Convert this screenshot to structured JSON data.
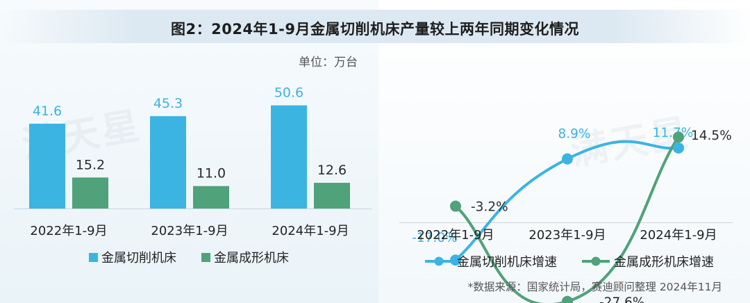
{
  "title": "图2：2024年1-9月金属切削机床产量较上两年同期变化情况",
  "unit_label": "单位：万台",
  "source": "*数据来源：国家统计局，赛迪顾问整理 2024年11月",
  "watermark": "满天星",
  "colors": {
    "cutting": "#3cb4e2",
    "forming": "#4fa279"
  },
  "chart_data": [
    {
      "type": "bar",
      "categories": [
        "2022年1-9月",
        "2023年1-9月",
        "2024年1-9月"
      ],
      "series": [
        {
          "name": "金属切削机床",
          "values": [
            41.6,
            45.3,
            50.6
          ],
          "labels": [
            "41.6",
            "45.3",
            "50.6"
          ]
        },
        {
          "name": "金属成形机床",
          "values": [
            15.2,
            11.0,
            12.6
          ],
          "labels": [
            "15.2",
            "11.0",
            "12.6"
          ]
        }
      ],
      "ylim": [
        0,
        60
      ],
      "legend": "bottom",
      "grid": false
    },
    {
      "type": "line",
      "categories": [
        "2022年1-9月",
        "2023年1-9月",
        "2024年1-9月"
      ],
      "series": [
        {
          "name": "金属切削机床增速",
          "values": [
            -17.0,
            8.9,
            11.7
          ],
          "labels": [
            "-17.0%",
            "8.9%",
            "11.7%"
          ]
        },
        {
          "name": "金属成形机床增速",
          "values": [
            -3.2,
            -27.6,
            14.5
          ],
          "labels": [
            "-3.2%",
            "-27.6%",
            "14.5%"
          ]
        }
      ],
      "ylim": [
        -30,
        16
      ],
      "legend": "bottom",
      "grid": false
    }
  ]
}
